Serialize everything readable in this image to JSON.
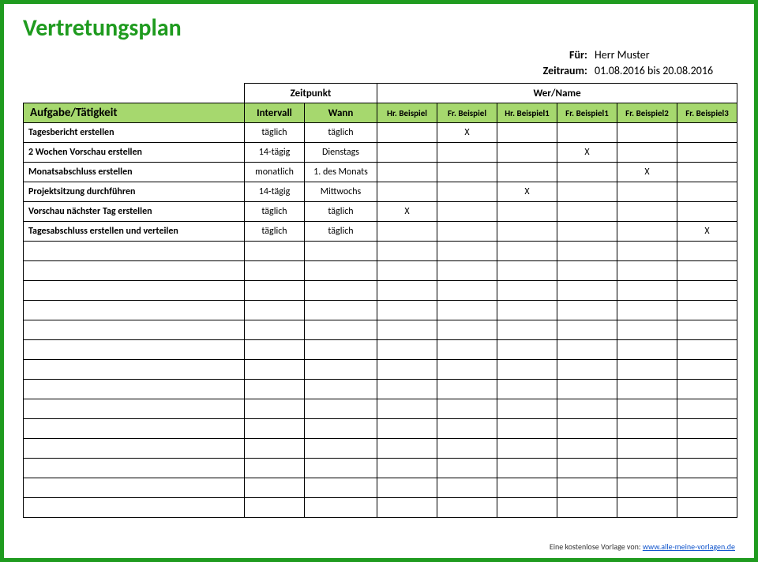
{
  "colors": {
    "frame_border": "#1f9b1f",
    "accent": "#1f9b1f",
    "header_bg": "#a6d86e"
  },
  "title": "Vertretungsplan",
  "meta": {
    "fuer_label": "Für:",
    "fuer_value": "Herr Muster",
    "zeitraum_label": "Zeitraum:",
    "zeitraum_value": "01.08.2016 bis 20.08.2016"
  },
  "super_headers": {
    "zeitpunkt": "Zeitpunkt",
    "wer_name": "Wer/Name"
  },
  "columns": {
    "task": "Aufgabe/Tätigkeit",
    "intervall": "Intervall",
    "wann": "Wann",
    "persons": [
      "Hr. Beispiel",
      "Fr. Beispiel",
      "Hr. Beispiel1",
      "Fr. Beispiel1",
      "Fr. Beispiel2",
      "Fr. Beispiel3"
    ]
  },
  "mark": "X",
  "rows": [
    {
      "task": "Tagesbericht erstellen",
      "intervall": "täglich",
      "wann": "täglich",
      "marks": [
        "",
        "X",
        "",
        "",
        "",
        ""
      ]
    },
    {
      "task": "2 Wochen Vorschau erstellen",
      "intervall": "14-tägig",
      "wann": "Dienstags",
      "marks": [
        "",
        "",
        "",
        "X",
        "",
        ""
      ]
    },
    {
      "task": "Monatsabschluss erstellen",
      "intervall": "monatlich",
      "wann": "1. des Monats",
      "marks": [
        "",
        "",
        "",
        "",
        "X",
        ""
      ]
    },
    {
      "task": "Projektsitzung durchführen",
      "intervall": "14-tägig",
      "wann": "Mittwochs",
      "marks": [
        "",
        "",
        "X",
        "",
        "",
        ""
      ]
    },
    {
      "task": "Vorschau nächster Tag erstellen",
      "intervall": "täglich",
      "wann": "täglich",
      "marks": [
        "X",
        "",
        "",
        "",
        "",
        ""
      ]
    },
    {
      "task": "Tagesabschluss erstellen und verteilen",
      "intervall": "täglich",
      "wann": "täglich",
      "marks": [
        "",
        "",
        "",
        "",
        "",
        "X"
      ]
    }
  ],
  "empty_rows": 14,
  "footer": {
    "text": "Eine kostenlose Vorlage von:",
    "link_text": "www.alle-meine-vorlagen.de"
  }
}
